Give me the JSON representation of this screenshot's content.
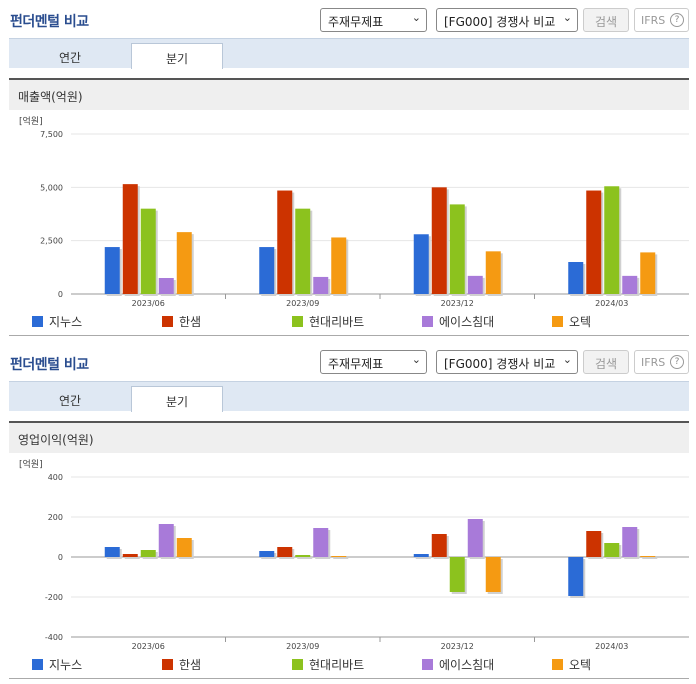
{
  "sections": [
    {
      "title": "펀더멘털 비교",
      "select1": "주재무제표",
      "select2": "[FG000] 경쟁사 비교",
      "search_label": "검색",
      "ifrs_label": "IFRS",
      "help_icon": "?",
      "tabs": [
        {
          "label": "연간"
        },
        {
          "label": "분기"
        }
      ],
      "chart_title": "매출액(억원)"
    },
    {
      "title": "펀더멘털 비교",
      "select1": "주재무제표",
      "select2": "[FG000] 경쟁사 비교",
      "search_label": "검색",
      "ifrs_label": "IFRS",
      "help_icon": "?",
      "tabs": [
        {
          "label": "연간"
        },
        {
          "label": "분기"
        }
      ],
      "chart_title": "영업이익(억원)"
    }
  ],
  "colors": {
    "지누스": "#2b6bd6",
    "한샘": "#cc3300",
    "현대리바트": "#8cc21e",
    "에이스침대": "#a87ad9",
    "오텍": "#f59a12"
  },
  "chart_data": [
    {
      "type": "bar",
      "unit_label": "[억원]",
      "categories": [
        "2023/06",
        "2023/09",
        "2023/12",
        "2024/03"
      ],
      "ylim": [
        0,
        7500
      ],
      "yticks": [
        "7,500",
        "5,000",
        "2,500",
        "0"
      ],
      "series": [
        {
          "name": "지누스",
          "values": [
            2200,
            2200,
            2800,
            1500
          ]
        },
        {
          "name": "한샘",
          "values": [
            5150,
            4850,
            5000,
            4850
          ]
        },
        {
          "name": "현대리바트",
          "values": [
            4000,
            4000,
            4200,
            5050
          ]
        },
        {
          "name": "에이스침대",
          "values": [
            750,
            800,
            850,
            850
          ]
        },
        {
          "name": "오텍",
          "values": [
            2900,
            2650,
            2000,
            1950
          ]
        }
      ]
    },
    {
      "type": "bar",
      "unit_label": "[억원]",
      "categories": [
        "2023/06",
        "2023/09",
        "2023/12",
        "2024/03"
      ],
      "ylim": [
        -400,
        400
      ],
      "yticks": [
        "400",
        "200",
        "0",
        "-200",
        "-400"
      ],
      "series": [
        {
          "name": "지누스",
          "values": [
            50,
            30,
            15,
            -195
          ]
        },
        {
          "name": "한샘",
          "values": [
            15,
            50,
            115,
            130
          ]
        },
        {
          "name": "현대리바트",
          "values": [
            35,
            10,
            -175,
            70
          ]
        },
        {
          "name": "에이스침대",
          "values": [
            165,
            145,
            190,
            150
          ]
        },
        {
          "name": "오텍",
          "values": [
            95,
            5,
            -175,
            5
          ]
        }
      ]
    }
  ]
}
